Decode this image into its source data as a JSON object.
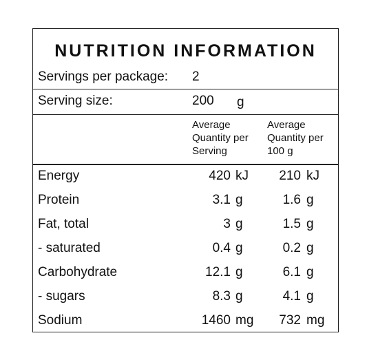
{
  "title": "NUTRITION INFORMATION",
  "servings": {
    "label": "Servings per package:",
    "value": "2"
  },
  "serving_size": {
    "label": "Serving size:",
    "value": "200",
    "unit": "g"
  },
  "columns": {
    "per_serving": [
      "Average",
      "Quantity per",
      "Serving"
    ],
    "per_100g": [
      "Average",
      "Quantity per",
      "100 g"
    ]
  },
  "rows": [
    {
      "name": "Energy",
      "serving": "420",
      "serving_unit": "kJ",
      "per100": "210",
      "per100_unit": "kJ"
    },
    {
      "name": "Protein",
      "serving": "3.1",
      "serving_unit": "g",
      "per100": "1.6",
      "per100_unit": "g"
    },
    {
      "name": "Fat, total",
      "serving": "3",
      "serving_unit": "g",
      "per100": "1.5",
      "per100_unit": "g"
    },
    {
      "name": "- saturated",
      "serving": "0.4",
      "serving_unit": "g",
      "per100": "0.2",
      "per100_unit": "g"
    },
    {
      "name": "Carbohydrate",
      "serving": "12.1",
      "serving_unit": "g",
      "per100": "6.1",
      "per100_unit": "g"
    },
    {
      "name": "- sugars",
      "serving": "8.3",
      "serving_unit": "g",
      "per100": "4.1",
      "per100_unit": "g"
    },
    {
      "name": "Sodium",
      "serving": "1460",
      "serving_unit": "mg",
      "per100": "732",
      "per100_unit": "mg"
    }
  ]
}
